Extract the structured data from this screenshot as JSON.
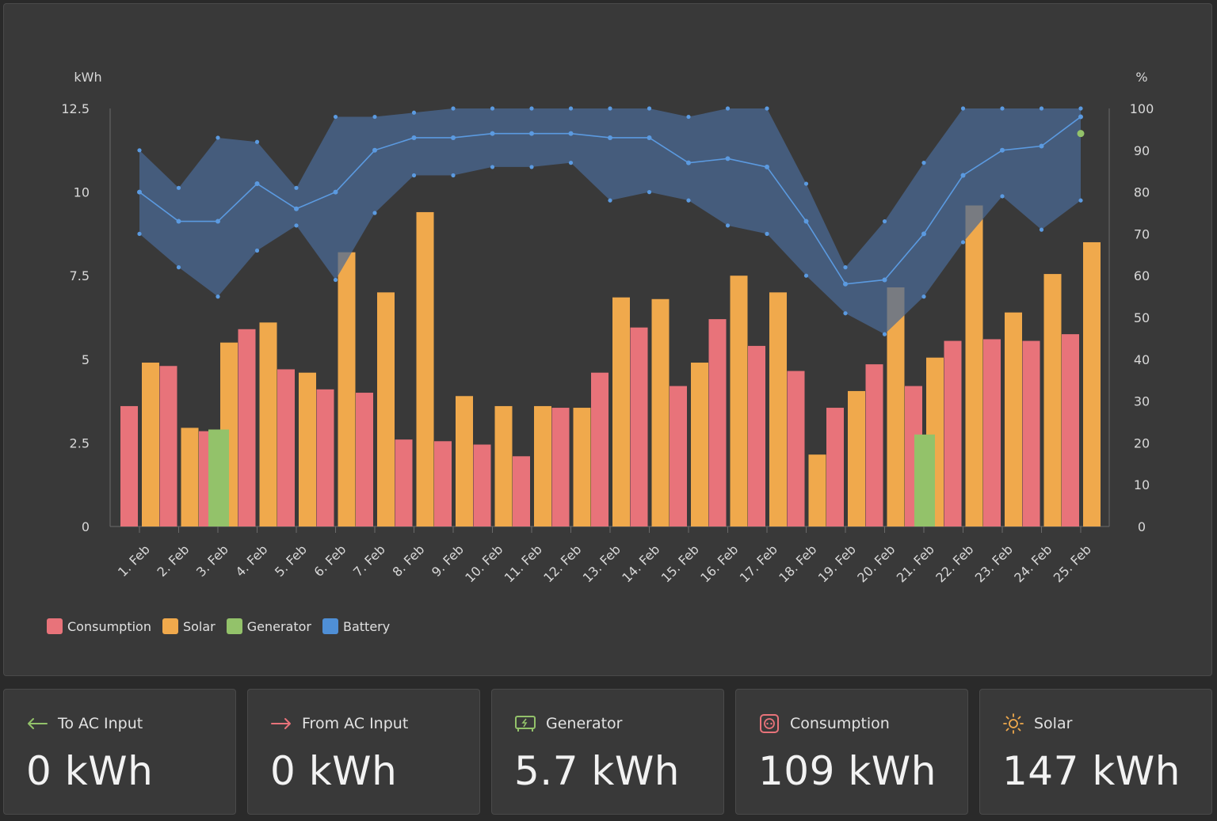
{
  "chart_data": {
    "type": "bar",
    "categories": [
      "1. Feb",
      "2. Feb",
      "3. Feb",
      "4. Feb",
      "5. Feb",
      "6. Feb",
      "7. Feb",
      "8. Feb",
      "9. Feb",
      "10. Feb",
      "11. Feb",
      "12. Feb",
      "13. Feb",
      "14. Feb",
      "15. Feb",
      "16. Feb",
      "17. Feb",
      "18. Feb",
      "19. Feb",
      "20. Feb",
      "21. Feb",
      "22. Feb",
      "23. Feb",
      "24. Feb",
      "25. Feb"
    ],
    "y_left_label": "kWh",
    "y_right_label": "%",
    "y_left_ticks": [
      "0",
      "2.5",
      "5",
      "7.5",
      "10",
      "12.5"
    ],
    "y_right_ticks": [
      "0",
      "10",
      "20",
      "30",
      "40",
      "50",
      "60",
      "70",
      "80",
      "90",
      "100"
    ],
    "ylim_left": [
      0,
      12.5
    ],
    "ylim_right": [
      0,
      100
    ],
    "series": [
      {
        "name": "Consumption",
        "color": "#e8737a",
        "values": [
          3.6,
          4.8,
          2.85,
          5.9,
          4.7,
          4.1,
          4.0,
          2.6,
          2.55,
          2.45,
          2.1,
          3.55,
          4.6,
          5.95,
          4.2,
          6.2,
          5.4,
          4.65,
          3.55,
          4.85,
          4.2,
          5.55,
          5.6,
          5.55,
          5.75
        ]
      },
      {
        "name": "Solar",
        "color": "#f0a94c",
        "values": [
          4.9,
          2.95,
          5.5,
          6.1,
          4.6,
          8.2,
          7.0,
          9.4,
          3.9,
          3.6,
          3.6,
          3.55,
          6.85,
          6.8,
          4.9,
          7.5,
          7.0,
          2.15,
          4.05,
          7.15,
          5.05,
          9.6,
          6.4,
          7.55,
          8.5
        ]
      },
      {
        "name": "Generator",
        "color": "#93c26a",
        "values": [
          0,
          0,
          2.9,
          0,
          0,
          0,
          0,
          0,
          0,
          0,
          0,
          0,
          0,
          0,
          0,
          0,
          0,
          0,
          0,
          0,
          2.75,
          0,
          0,
          0,
          0
        ]
      },
      {
        "name": "Battery",
        "color": "#4f8fd6",
        "avg": [
          80,
          73,
          73,
          82,
          76,
          80,
          90,
          93,
          93,
          94,
          94,
          94,
          93,
          93,
          87,
          88,
          86,
          73,
          58,
          59,
          70,
          84,
          90,
          91,
          98
        ],
        "max": [
          90,
          81,
          93,
          92,
          81,
          98,
          98,
          99,
          100,
          100,
          100,
          100,
          100,
          100,
          98,
          100,
          100,
          82,
          62,
          73,
          87,
          100,
          100,
          100,
          100
        ],
        "min": [
          70,
          62,
          55,
          66,
          72,
          59,
          75,
          84,
          84,
          86,
          86,
          87,
          78,
          80,
          78,
          72,
          70,
          60,
          51,
          46,
          55,
          68,
          79,
          71,
          78
        ],
        "last_point": 94
      }
    ],
    "legend": [
      "Consumption",
      "Solar",
      "Generator",
      "Battery"
    ],
    "legend_position": "bottom-left"
  },
  "cards": [
    {
      "label": "To AC Input",
      "value": "0 kWh",
      "icon": "arrow-left-icon",
      "color": "#93c26a"
    },
    {
      "label": "From AC Input",
      "value": "0 kWh",
      "icon": "arrow-right-icon",
      "color": "#e8737a"
    },
    {
      "label": "Generator",
      "value": "5.7 kWh",
      "icon": "generator-icon",
      "color": "#93c26a"
    },
    {
      "label": "Consumption",
      "value": "109 kWh",
      "icon": "outlet-icon",
      "color": "#e8737a"
    },
    {
      "label": "Solar",
      "value": "147 kWh",
      "icon": "sun-icon",
      "color": "#f0a94c"
    }
  ]
}
